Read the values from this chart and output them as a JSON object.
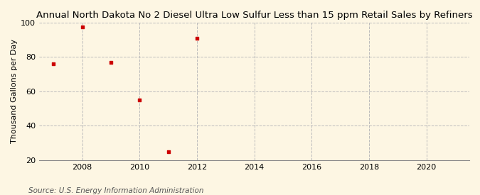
{
  "title": "Annual North Dakota No 2 Diesel Ultra Low Sulfur Less than 15 ppm Retail Sales by Refiners",
  "ylabel": "Thousand Gallons per Day",
  "source": "Source: U.S. Energy Information Administration",
  "x_data": [
    2007,
    2008,
    2009,
    2010,
    2011,
    2012
  ],
  "y_data": [
    76.0,
    97.5,
    77.0,
    55.0,
    25.0,
    91.0
  ],
  "marker_color": "#cc0000",
  "marker": "s",
  "marker_size": 3.5,
  "xlim": [
    2006.5,
    2021.5
  ],
  "ylim": [
    20,
    100
  ],
  "yticks": [
    20,
    40,
    60,
    80,
    100
  ],
  "xticks": [
    2008,
    2010,
    2012,
    2014,
    2016,
    2018,
    2020
  ],
  "background_color": "#fdf6e3",
  "grid_color": "#bbbbbb",
  "title_fontsize": 9.5,
  "ylabel_fontsize": 8.0,
  "tick_fontsize": 8.0,
  "source_fontsize": 7.5
}
